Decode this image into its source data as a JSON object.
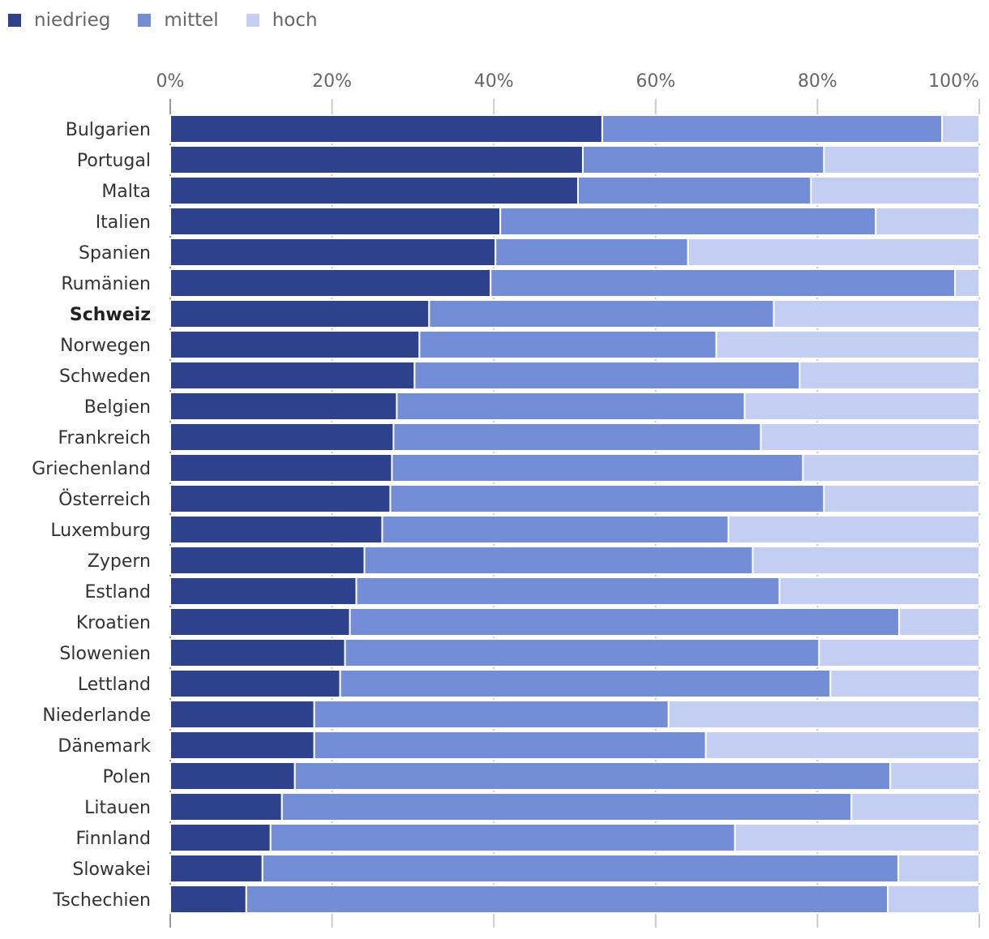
{
  "chart_data": {
    "type": "bar",
    "orientation": "horizontal",
    "stacked": true,
    "highlighted_category": "Schweiz",
    "xlim": [
      0,
      100
    ],
    "x_ticks": [
      "0%",
      "20%",
      "40%",
      "60%",
      "80%",
      "100%"
    ],
    "categories": [
      "Bulgarien",
      "Portugal",
      "Malta",
      "Italien",
      "Spanien",
      "Rumänien",
      "Schweiz",
      "Norwegen",
      "Schweden",
      "Belgien",
      "Frankreich",
      "Griechenland",
      "Österreich",
      "Luxemburg",
      "Zypern",
      "Estland",
      "Kroatien",
      "Slowenien",
      "Lettland",
      "Niederlande",
      "Dänemark",
      "Polen",
      "Litauen",
      "Finnland",
      "Slowakei",
      "Tschechien"
    ],
    "series": [
      {
        "name": "niedrieg",
        "color": "#2d418d",
        "values": [
          53.4,
          51.0,
          50.4,
          40.8,
          40.2,
          39.6,
          32.0,
          30.8,
          30.2,
          28.0,
          27.6,
          27.4,
          27.2,
          26.2,
          24.0,
          23.0,
          22.2,
          21.6,
          21.0,
          17.8,
          17.8,
          15.4,
          13.8,
          12.4,
          11.4,
          9.4
        ]
      },
      {
        "name": "mittel",
        "color": "#738dd6",
        "values": [
          42.0,
          29.8,
          28.8,
          46.4,
          23.8,
          57.4,
          42.6,
          36.7,
          47.6,
          43.0,
          45.4,
          50.8,
          53.6,
          42.8,
          48.0,
          52.3,
          67.9,
          58.6,
          60.6,
          43.8,
          48.4,
          73.6,
          70.4,
          57.4,
          78.6,
          79.3
        ]
      },
      {
        "name": "hoch",
        "color": "#c4cdf2",
        "values": [
          4.6,
          19.2,
          20.8,
          12.8,
          36.0,
          3.0,
          25.4,
          32.5,
          22.2,
          29.0,
          27.0,
          21.8,
          19.2,
          31.0,
          28.0,
          24.7,
          9.9,
          19.8,
          18.4,
          38.4,
          33.8,
          11.0,
          15.8,
          30.2,
          10.0,
          11.3
        ]
      }
    ]
  }
}
